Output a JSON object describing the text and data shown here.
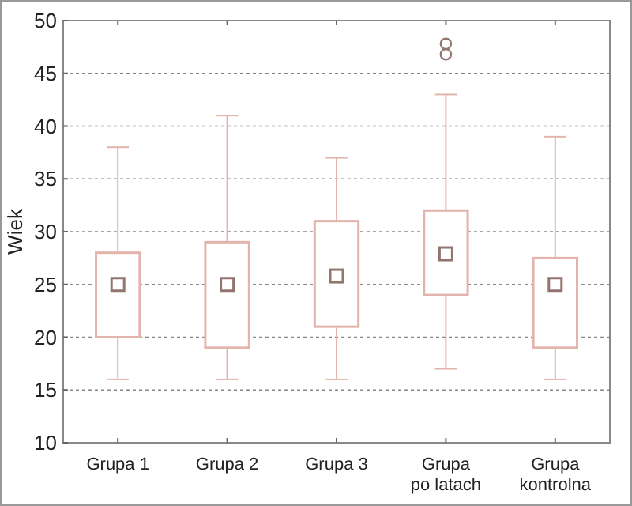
{
  "chart_data": {
    "type": "box",
    "ylabel": "Wiek",
    "categories": [
      "Grupa 1",
      "Grupa 2",
      "Grupa 3",
      "Grupa po latach",
      "Grupa kontrolna"
    ],
    "boxes": [
      {
        "low": 16,
        "q1": 20,
        "median": 25,
        "q3": 28,
        "high": 38
      },
      {
        "low": 16,
        "q1": 19,
        "median": 25,
        "q3": 29,
        "high": 41
      },
      {
        "low": 16,
        "q1": 21,
        "median": 25.8,
        "q3": 31,
        "high": 37
      },
      {
        "low": 17,
        "q1": 24,
        "median": 27.9,
        "q3": 32,
        "high": 43,
        "outliers": [
          46.8,
          47.8
        ]
      },
      {
        "low": 16,
        "q1": 19,
        "median": 25,
        "q3": 27.5,
        "high": 39
      }
    ],
    "color": "#e2b4ac",
    "marker": "square",
    "ylim": [
      10,
      50
    ],
    "yticks": [
      10,
      15,
      20,
      25,
      30,
      35,
      40,
      45,
      50
    ],
    "grid": "y"
  }
}
